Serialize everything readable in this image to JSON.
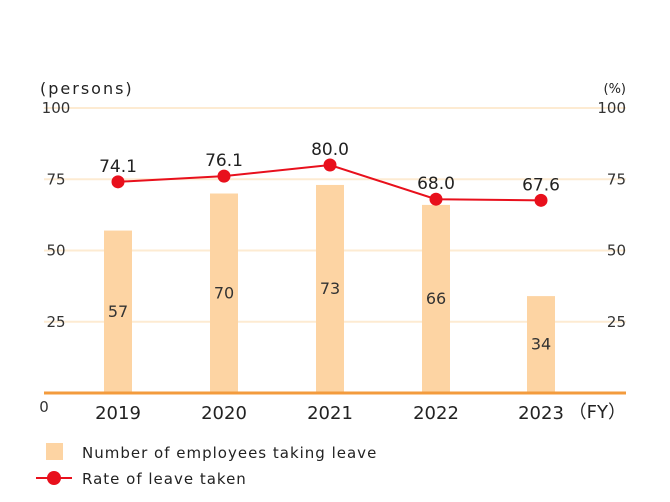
{
  "chart_data": {
    "type": "bar",
    "categories": [
      "2019",
      "2020",
      "2021",
      "2022",
      "2023"
    ],
    "series": [
      {
        "name": "Number of employees taking leave",
        "type": "bar",
        "axis": "left",
        "color": "#fdd4a3",
        "values": [
          57,
          70,
          73,
          66,
          34
        ]
      },
      {
        "name": "Rate of leave taken",
        "type": "line",
        "axis": "right",
        "color": "#e8101c",
        "values": [
          74.1,
          76.1,
          80.0,
          68.0,
          67.6
        ],
        "labels": [
          "74.1",
          "76.1",
          "80.0",
          "68.0",
          "67.6"
        ]
      }
    ],
    "y_left": {
      "label": "(persons)",
      "ticks": [
        "0",
        "25",
        "50",
        "75",
        "100"
      ],
      "ylim": [
        0,
        100
      ]
    },
    "y_right": {
      "label": "(%)",
      "ticks": [
        "25",
        "50",
        "75",
        "100"
      ],
      "ylim": [
        0,
        100
      ]
    },
    "x_unit": "（FY）",
    "grid": true,
    "legend_position": "bottom-left",
    "colors": {
      "axis": "#f39b3d",
      "grid": "#fdebd2"
    }
  }
}
